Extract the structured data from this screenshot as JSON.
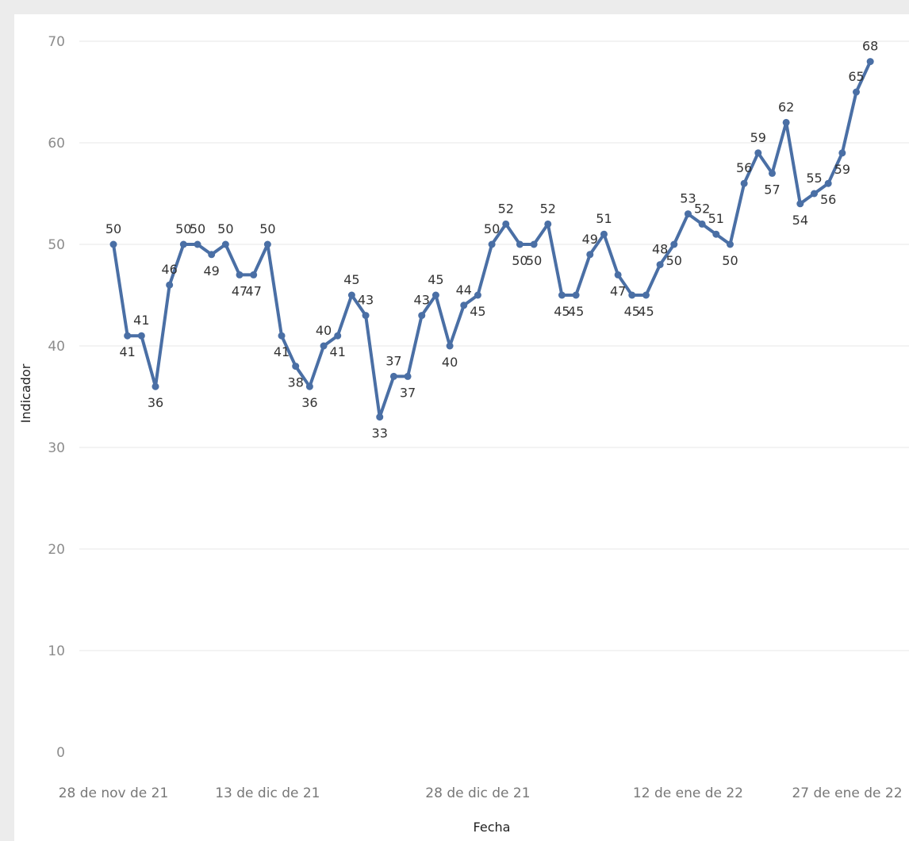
{
  "chart_data": {
    "type": "line",
    "title": "",
    "xlabel": "Fecha",
    "ylabel": "Indicador",
    "ylim": [
      0,
      70
    ],
    "yticks": [
      0,
      10,
      20,
      30,
      40,
      50,
      60,
      70
    ],
    "grid": true,
    "legend": "none",
    "x_tick_labels": [
      "28 de nov de 21",
      "13 de dic de 21",
      "28 de dic de 21",
      "12 de ene de 22",
      "27 de ene de 22"
    ],
    "series": [
      {
        "color": "#4a6fa5",
        "values": [
          50,
          41,
          41,
          36,
          46,
          50,
          50,
          49,
          50,
          47,
          47,
          50,
          41,
          38,
          36,
          40,
          41,
          45,
          43,
          33,
          37,
          37,
          43,
          45,
          40,
          44,
          45,
          50,
          52,
          50,
          50,
          52,
          45,
          45,
          49,
          51,
          47,
          45,
          45,
          48,
          50,
          53,
          52,
          51,
          50,
          56,
          59,
          57,
          62,
          54,
          55,
          56,
          59,
          65,
          68
        ]
      }
    ]
  }
}
